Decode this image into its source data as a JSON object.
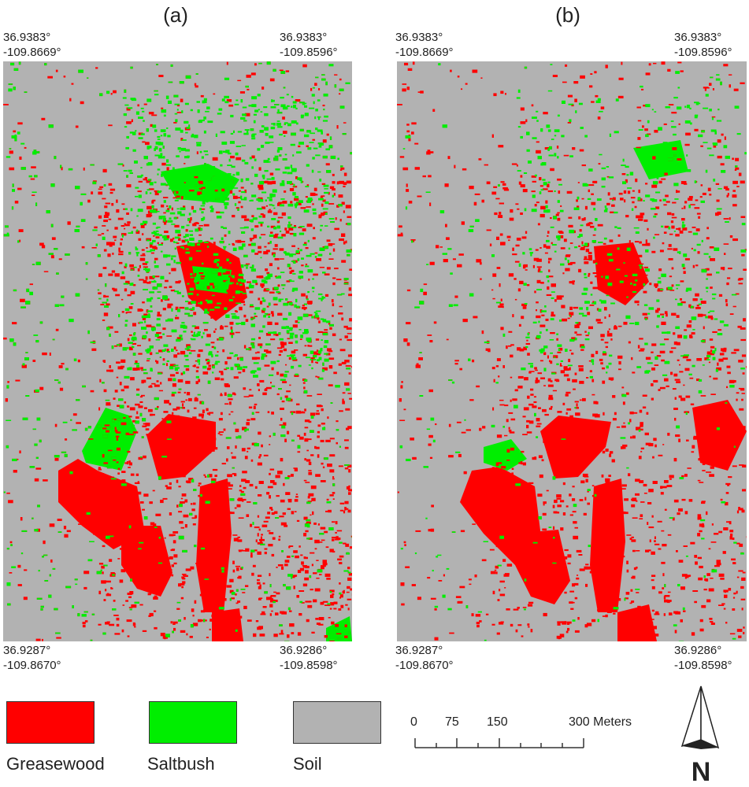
{
  "panels": [
    {
      "label": "(a)",
      "top_left": {
        "lat": "36.9383°",
        "lon": "-109.8669°"
      },
      "top_right": {
        "lat": "36.9383°",
        "lon": "-109.8596°"
      },
      "bottom_left": {
        "lat": "36.9287°",
        "lon": "-109.8670°"
      },
      "bottom_right": {
        "lat": "36.9286°",
        "lon": "-109.8598°"
      }
    },
    {
      "label": "(b)",
      "top_left": {
        "lat": "36.9383°",
        "lon": "-109.8669°"
      },
      "top_right": {
        "lat": "36.9383°",
        "lon": "-109.8596°"
      },
      "bottom_left": {
        "lat": "36.9287°",
        "lon": "-109.8670°"
      },
      "bottom_right": {
        "lat": "36.9286°",
        "lon": "-109.8598°"
      }
    }
  ],
  "legend": [
    {
      "label": "Greasewood",
      "color": "#ff0000"
    },
    {
      "label": "Saltbush",
      "color": "#00ee00"
    },
    {
      "label": "Soil",
      "color": "#b2b2b2"
    }
  ],
  "scalebar": {
    "ticks": [
      "0",
      "75",
      "150",
      "300 Meters"
    ]
  },
  "north_arrow": {
    "label": "N"
  }
}
